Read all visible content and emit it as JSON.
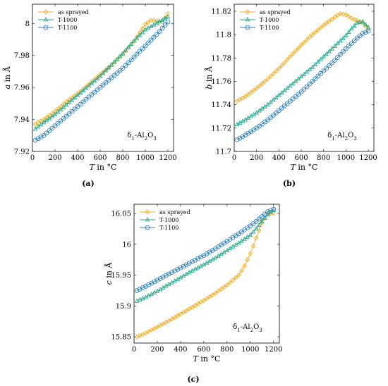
{
  "chart_data": [
    {
      "type": "line",
      "panel_label": "(a)",
      "xlabel": "T in °C",
      "ylabel": "a in Å",
      "xlim": [
        0,
        1250
      ],
      "ylim": [
        7.92,
        8.012
      ],
      "x_ticks": [
        0,
        200,
        400,
        600,
        800,
        1000,
        1200
      ],
      "y_ticks": [
        7.92,
        7.94,
        7.96,
        7.98,
        8.0
      ],
      "y_tick_labels": [
        "7.92",
        "7.94",
        "7.96",
        "7.98",
        "8"
      ],
      "annotation": "δ1-Al2O3",
      "legend_position": "top-left",
      "grid": false,
      "series": [
        {
          "name": "as sprayed",
          "color": "#f0ad22",
          "marker": "diamond",
          "x": [
            25,
            100,
            200,
            300,
            400,
            500,
            600,
            700,
            800,
            900,
            1000,
            1050,
            1100,
            1150,
            1200
          ],
          "values": [
            7.937,
            7.94,
            7.945,
            7.951,
            7.956,
            7.962,
            7.968,
            7.974,
            7.981,
            7.989,
            7.9995,
            8.002,
            8.0015,
            8.001,
            8.006
          ]
        },
        {
          "name": "T-1000",
          "color": "#27a88f",
          "marker": "triangle",
          "x": [
            25,
            100,
            200,
            300,
            400,
            500,
            600,
            700,
            800,
            900,
            1000,
            1050,
            1100,
            1150,
            1200
          ],
          "values": [
            7.934,
            7.938,
            7.943,
            7.949,
            7.955,
            7.961,
            7.967,
            7.974,
            7.981,
            7.989,
            7.996,
            7.998,
            8.0,
            8.002,
            8.004
          ]
        },
        {
          "name": "T-1100",
          "color": "#2b7fc0",
          "marker": "circle",
          "x": [
            25,
            100,
            200,
            300,
            400,
            500,
            600,
            700,
            800,
            900,
            1000,
            1100,
            1200
          ],
          "values": [
            7.927,
            7.93,
            7.936,
            7.942,
            7.948,
            7.954,
            7.96,
            7.966,
            7.972,
            7.979,
            7.986,
            7.993,
            8.001
          ]
        }
      ]
    },
    {
      "type": "line",
      "panel_label": "(b)",
      "xlabel": "T in °C",
      "ylabel": "b in Å",
      "xlim": [
        0,
        1250
      ],
      "ylim": [
        11.7,
        11.826
      ],
      "x_ticks": [
        0,
        200,
        400,
        600,
        800,
        1000,
        1200
      ],
      "y_ticks": [
        11.7,
        11.72,
        11.74,
        11.76,
        11.78,
        11.8,
        11.82
      ],
      "y_tick_labels": [
        "11.7",
        "11.72",
        "11.74",
        "11.76",
        "11.78",
        "11.8",
        "11.82"
      ],
      "annotation": "δ1-Al2O3",
      "legend_position": "top-left",
      "grid": false,
      "series": [
        {
          "name": "as sprayed",
          "color": "#f0ad22",
          "marker": "diamond",
          "x": [
            25,
            100,
            200,
            300,
            400,
            500,
            600,
            700,
            800,
            900,
            950,
            1000,
            1050,
            1100,
            1150,
            1200
          ],
          "values": [
            11.743,
            11.747,
            11.754,
            11.762,
            11.771,
            11.781,
            11.791,
            11.8,
            11.808,
            11.815,
            11.818,
            11.817,
            11.814,
            11.812,
            11.81,
            11.805
          ]
        },
        {
          "name": "T-1000",
          "color": "#27a88f",
          "marker": "triangle",
          "x": [
            25,
            100,
            200,
            300,
            400,
            500,
            600,
            700,
            800,
            900,
            1000,
            1050,
            1100,
            1150,
            1200
          ],
          "values": [
            11.723,
            11.727,
            11.733,
            11.74,
            11.748,
            11.756,
            11.764,
            11.772,
            11.781,
            11.79,
            11.799,
            11.805,
            11.81,
            11.811,
            11.806
          ]
        },
        {
          "name": "T-1100",
          "color": "#2b7fc0",
          "marker": "circle",
          "x": [
            25,
            100,
            200,
            300,
            400,
            500,
            600,
            700,
            800,
            900,
            1000,
            1100,
            1150,
            1200
          ],
          "values": [
            11.71,
            11.714,
            11.72,
            11.727,
            11.735,
            11.743,
            11.751,
            11.76,
            11.769,
            11.778,
            11.788,
            11.797,
            11.801,
            11.803
          ]
        }
      ]
    },
    {
      "type": "line",
      "panel_label": "(c)",
      "xlabel": "T in °C",
      "ylabel": "c in Å",
      "xlim": [
        0,
        1250
      ],
      "ylim": [
        15.84,
        16.065
      ],
      "x_ticks": [
        0,
        200,
        400,
        600,
        800,
        1000,
        1200
      ],
      "y_ticks": [
        15.85,
        15.9,
        15.95,
        16.0,
        16.05
      ],
      "y_tick_labels": [
        "15.85",
        "15.9",
        "15.95",
        "16",
        "16.05"
      ],
      "annotation": "δ1-Al2O3",
      "legend_position": "top-left",
      "grid": false,
      "series": [
        {
          "name": "as sprayed",
          "color": "#f0ad22",
          "marker": "diamond",
          "x": [
            25,
            100,
            200,
            300,
            400,
            500,
            600,
            700,
            800,
            900,
            950,
            1000,
            1050,
            1100,
            1150,
            1200
          ],
          "values": [
            15.85,
            15.856,
            15.866,
            15.876,
            15.887,
            15.898,
            15.909,
            15.921,
            15.934,
            15.95,
            15.965,
            15.985,
            16.01,
            16.035,
            16.05,
            16.05
          ]
        },
        {
          "name": "T-1000",
          "color": "#27a88f",
          "marker": "triangle",
          "x": [
            25,
            100,
            200,
            300,
            400,
            500,
            600,
            700,
            800,
            900,
            1000,
            1050,
            1100,
            1150,
            1200
          ],
          "values": [
            15.908,
            15.914,
            15.924,
            15.935,
            15.946,
            15.957,
            15.967,
            15.978,
            15.99,
            16.002,
            16.015,
            16.025,
            16.037,
            16.048,
            16.055
          ]
        },
        {
          "name": "T-1100",
          "color": "#2b7fc0",
          "marker": "circle",
          "x": [
            25,
            100,
            200,
            300,
            400,
            500,
            600,
            700,
            800,
            900,
            1000,
            1050,
            1100,
            1150,
            1200
          ],
          "values": [
            15.925,
            15.932,
            15.942,
            15.952,
            15.962,
            15.972,
            15.982,
            15.993,
            16.005,
            16.017,
            16.03,
            16.037,
            16.045,
            16.053,
            16.057
          ]
        }
      ]
    }
  ]
}
